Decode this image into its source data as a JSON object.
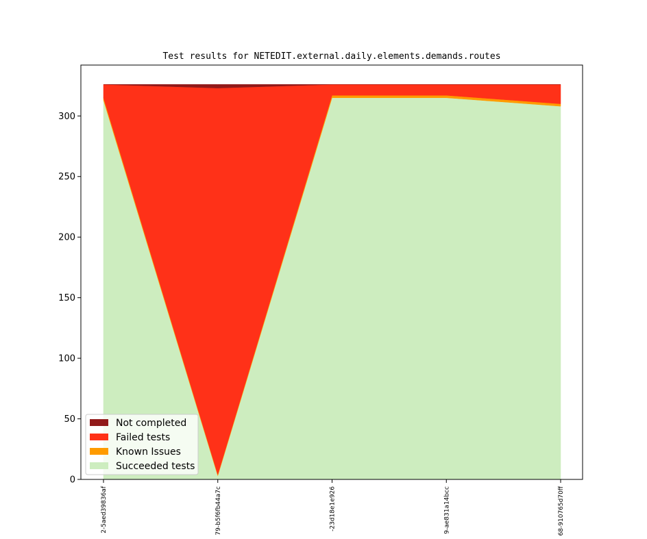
{
  "chart_data": {
    "type": "area",
    "title": "Test results for NETEDIT.external.daily.elements.demands.routes",
    "xlabel": "",
    "ylabel": "",
    "categories": [
      "2-5aed39836af",
      "79-b5f6fb44a7c",
      "-23d18e1e926",
      "9-ae831a14bcc",
      "68-910765d70ff"
    ],
    "ylim": [
      0,
      342
    ],
    "yticks": [
      0,
      50,
      100,
      150,
      200,
      250,
      300
    ],
    "stacked": true,
    "legend_position": "lower-left",
    "grid": false,
    "series": [
      {
        "name": "Succeeded tests",
        "color": "#cdedbf",
        "values": [
          313,
          3,
          315,
          315,
          308
        ]
      },
      {
        "name": "Known Issues",
        "color": "#ff9b00",
        "values": [
          2,
          1,
          2,
          2,
          2
        ]
      },
      {
        "name": "Failed tests",
        "color": "#ff3118",
        "values": [
          11,
          319,
          9,
          9,
          16
        ]
      },
      {
        "name": "Not completed",
        "color": "#911a1a",
        "values": [
          0,
          3,
          0,
          0,
          0
        ]
      }
    ]
  }
}
